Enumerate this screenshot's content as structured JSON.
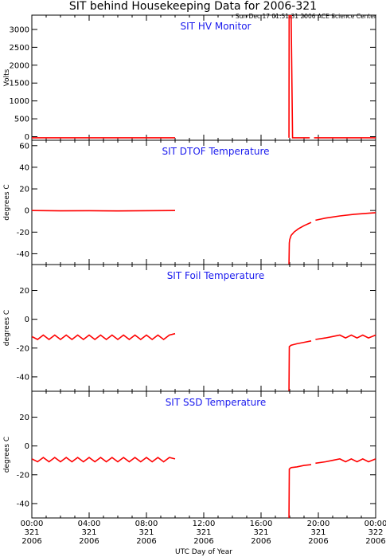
{
  "title": "SIT behind Housekeeping Data for 2006-321",
  "timestamp": "Sun Dec 17 01:51:31 2006 ACE Science Center",
  "xlabel": "UTC Day of Year",
  "x_ticks": [
    {
      "time": "00:00",
      "doy": "321",
      "year": "2006"
    },
    {
      "time": "04:00",
      "doy": "321",
      "year": "2006"
    },
    {
      "time": "08:00",
      "doy": "321",
      "year": "2006"
    },
    {
      "time": "12:00",
      "doy": "321",
      "year": "2006"
    },
    {
      "time": "16:00",
      "doy": "321",
      "year": "2006"
    },
    {
      "time": "20:00",
      "doy": "321",
      "year": "2006"
    },
    {
      "time": "00:00",
      "doy": "322",
      "year": "2006"
    }
  ],
  "colors": {
    "data": "#ff0000",
    "panel_title": "#1a1aee",
    "axes": "#000000"
  },
  "chart_data": [
    {
      "type": "line",
      "title": "SIT HV Monitor",
      "ylabel": "Volts",
      "ylim": [
        -100,
        3400
      ],
      "yticks": [
        0,
        500,
        1000,
        1500,
        2000,
        2500,
        3000
      ],
      "xlim_hours": [
        0,
        24
      ],
      "series": [
        {
          "x": [
            0,
            10.0
          ],
          "y": [
            -30,
            -30
          ]
        },
        {
          "x": [
            17.95,
            17.96,
            18.1,
            18.2,
            19.4
          ],
          "y": [
            -30,
            3400,
            3400,
            -30,
            -30
          ]
        },
        {
          "x": [
            19.7,
            24
          ],
          "y": [
            -30,
            -30
          ]
        }
      ]
    },
    {
      "type": "line",
      "title": "SIT DTOF Temperature",
      "ylabel": "degrees C",
      "ylim": [
        -50,
        65
      ],
      "yticks": [
        -40,
        -20,
        0,
        20,
        40,
        60
      ],
      "xlim_hours": [
        0,
        24
      ],
      "series": [
        {
          "x": [
            0,
            2,
            4,
            6,
            8,
            10
          ],
          "y": [
            0,
            -0.3,
            -0.2,
            -0.4,
            -0.2,
            0
          ]
        },
        {
          "x": [
            17.95,
            17.97,
            18.0,
            18.1,
            18.3,
            18.6,
            19.0,
            19.5
          ],
          "y": [
            -50,
            -30,
            -27,
            -23,
            -20,
            -17,
            -14,
            -11
          ]
        },
        {
          "x": [
            19.8,
            20.5,
            21.5,
            22.5,
            23.5,
            24
          ],
          "y": [
            -9,
            -7,
            -5,
            -3.5,
            -2.5,
            -2
          ]
        }
      ]
    },
    {
      "type": "line",
      "title": "SIT Foil Temperature",
      "ylabel": "degrees C",
      "ylim": [
        -50,
        38
      ],
      "yticks": [
        -40,
        -20,
        0,
        20
      ],
      "xlim_hours": [
        0,
        24
      ],
      "series": [
        {
          "x": [
            0,
            0.4,
            0.8,
            1.2,
            1.6,
            2.0,
            2.4,
            2.8,
            3.2,
            3.6,
            4.0,
            4.4,
            4.8,
            5.2,
            5.6,
            6.0,
            6.4,
            6.8,
            7.2,
            7.6,
            8.0,
            8.4,
            8.8,
            9.2,
            9.6,
            10.0
          ],
          "y": [
            -12,
            -14,
            -11,
            -14,
            -11,
            -14,
            -11,
            -14,
            -11,
            -14,
            -11,
            -14,
            -11,
            -14,
            -11,
            -14,
            -11,
            -14,
            -11,
            -14,
            -11,
            -14,
            -11,
            -14,
            -11,
            -10
          ]
        },
        {
          "x": [
            17.95,
            17.97,
            18.1,
            18.5,
            19.0,
            19.5
          ],
          "y": [
            -50,
            -19,
            -18,
            -17,
            -16,
            -15
          ]
        },
        {
          "x": [
            19.8,
            20.5,
            21.0,
            21.5,
            21.9,
            22.3,
            22.7,
            23.1,
            23.5,
            24
          ],
          "y": [
            -14,
            -13,
            -12,
            -11,
            -13,
            -11,
            -13,
            -11,
            -13,
            -11
          ]
        }
      ]
    },
    {
      "type": "line",
      "title": "SIT SSD Temperature",
      "ylabel": "degrees C",
      "ylim": [
        -50,
        38
      ],
      "yticks": [
        -40,
        -20,
        0,
        20
      ],
      "xlim_hours": [
        0,
        24
      ],
      "series": [
        {
          "x": [
            0,
            0.4,
            0.8,
            1.2,
            1.6,
            2.0,
            2.4,
            2.8,
            3.2,
            3.6,
            4.0,
            4.4,
            4.8,
            5.2,
            5.6,
            6.0,
            6.4,
            6.8,
            7.2,
            7.6,
            8.0,
            8.4,
            8.8,
            9.2,
            9.6,
            10.0
          ],
          "y": [
            -9,
            -11,
            -8,
            -11,
            -8,
            -11,
            -8,
            -11,
            -8,
            -11,
            -8,
            -11,
            -8,
            -11,
            -8,
            -11,
            -8,
            -11,
            -8,
            -11,
            -8,
            -11,
            -8,
            -11,
            -8,
            -9
          ]
        },
        {
          "x": [
            17.95,
            17.97,
            18.1,
            18.5,
            19.0,
            19.5
          ],
          "y": [
            -50,
            -16,
            -15,
            -14.5,
            -13.5,
            -13
          ]
        },
        {
          "x": [
            19.8,
            20.5,
            21.0,
            21.5,
            21.9,
            22.3,
            22.7,
            23.1,
            23.5,
            24
          ],
          "y": [
            -12,
            -11,
            -10,
            -9,
            -11,
            -9,
            -11,
            -9,
            -11,
            -9
          ]
        }
      ]
    }
  ]
}
